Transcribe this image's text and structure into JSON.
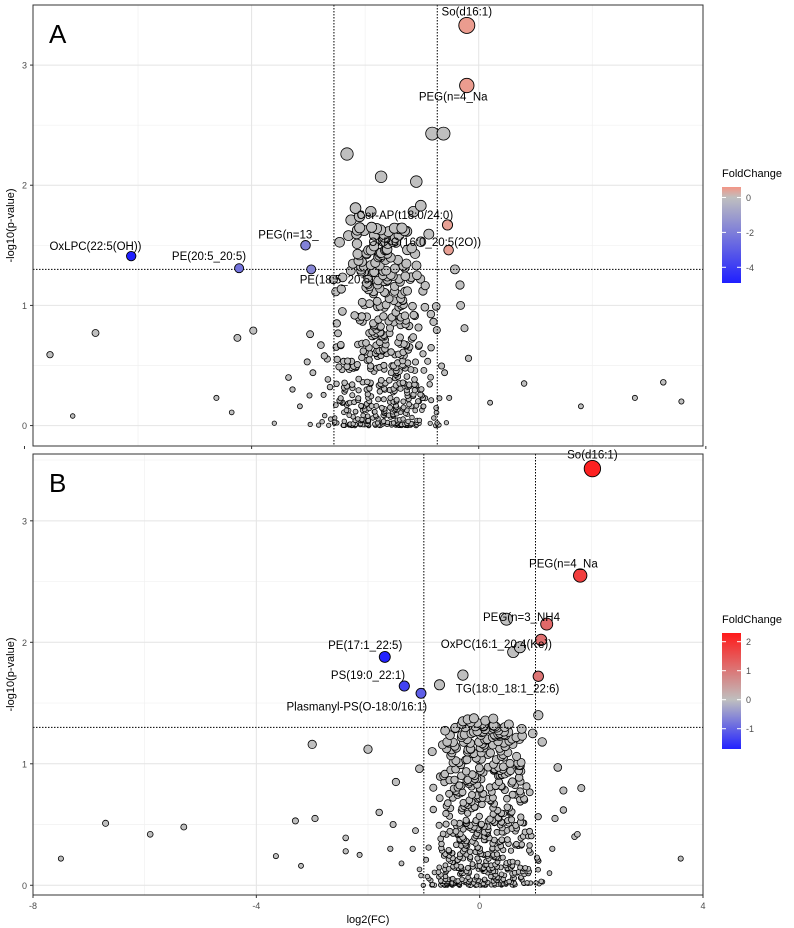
{
  "figure": {
    "shared_xlabel": "log2(FC)",
    "shared_xticks": [
      -8,
      -4,
      0,
      4
    ]
  },
  "chart_data": [
    {
      "type": "scatter",
      "panel_label": "A",
      "ylabel": "-log10(p-value)",
      "xlim": [
        -7.85,
        3.95
      ],
      "ylim": [
        -0.17,
        3.5
      ],
      "yticks": [
        0,
        1,
        2,
        3
      ],
      "grid": true,
      "thresholds": {
        "vlines": [
          -2.55,
          -0.73
        ],
        "hline": 1.3
      },
      "legend": {
        "title": "FoldChange",
        "placement": "right",
        "ticks": [
          0,
          -2,
          -4
        ],
        "range": [
          -4.9,
          0.6
        ],
        "colors": {
          "low": "#1f1fff",
          "mid": "#bfbfbf",
          "high": "#f49585"
        }
      },
      "highlighted": [
        {
          "label": "So(d16:1)",
          "x": -0.21,
          "y": 3.33,
          "fc": 0.5
        },
        {
          "label": "PEG(n=4_Na",
          "x": -0.21,
          "y": 2.83,
          "fc": 0.5
        },
        {
          "label": "Cer-AP(t18:0/24:0)",
          "x": -0.55,
          "y": 1.67,
          "fc": 0.45
        },
        {
          "label": "OxPC(16:0_20:5(2O))",
          "x": -0.53,
          "y": 1.46,
          "fc": 0.45
        },
        {
          "label": "PEG(n=13_",
          "x": -3.05,
          "y": 1.5,
          "fc": -1.9
        },
        {
          "label": "OxLPC(22:5(OH))",
          "x": -6.12,
          "y": 1.41,
          "fc": -4.9
        },
        {
          "label": "PE(20:5_20:5)",
          "x": -4.22,
          "y": 1.31,
          "fc": -2.3
        },
        {
          "label": "PE(18:5_20:5)",
          "x": -2.95,
          "y": 1.3,
          "fc": -1.7
        }
      ],
      "background_points": [
        [
          -2.32,
          2.26
        ],
        [
          -0.82,
          2.43
        ],
        [
          -0.62,
          2.43
        ],
        [
          -1.72,
          2.07
        ],
        [
          -1.1,
          2.03
        ],
        [
          -2.17,
          1.81
        ],
        [
          -2.1,
          1.74
        ],
        [
          -1.9,
          1.78
        ],
        [
          -2.25,
          1.71
        ],
        [
          -1.02,
          1.83
        ],
        [
          -1.15,
          1.78
        ],
        [
          -7.55,
          0.59
        ],
        [
          -6.75,
          0.77
        ],
        [
          -7.15,
          0.08
        ],
        [
          -4.35,
          0.11
        ],
        [
          -4.62,
          0.23
        ],
        [
          -4.25,
          0.73
        ],
        [
          -3.97,
          0.79
        ],
        [
          -3.6,
          0.02
        ],
        [
          -3.35,
          0.4
        ],
        [
          -3.28,
          0.3
        ],
        [
          -3.15,
          0.16
        ],
        [
          -3.02,
          0.53
        ],
        [
          -2.97,
          0.76
        ],
        [
          -2.92,
          0.44
        ],
        [
          -2.98,
          0.25
        ],
        [
          -2.78,
          0.67
        ],
        [
          -2.72,
          0.58
        ],
        [
          -2.62,
          0.32
        ],
        [
          -2.5,
          0.85
        ],
        [
          -2.4,
          0.95
        ],
        [
          -0.18,
          0.56
        ],
        [
          -0.25,
          0.81
        ],
        [
          -0.32,
          1.0
        ],
        [
          -0.52,
          0.23
        ],
        [
          0.2,
          0.19
        ],
        [
          0.8,
          0.35
        ],
        [
          1.8,
          0.16
        ],
        [
          2.75,
          0.23
        ],
        [
          3.25,
          0.36
        ],
        [
          3.57,
          0.2
        ],
        [
          -0.33,
          1.17
        ],
        [
          -0.42,
          1.3
        ]
      ],
      "cloud": {
        "x_range": [
          -3.0,
          -0.4
        ],
        "y_range": [
          0.0,
          1.65
        ],
        "n": 520,
        "seed": 11
      }
    },
    {
      "type": "scatter",
      "panel_label": "B",
      "ylabel": "-log10(p-value)",
      "xlim": [
        -8.0,
        4.0
      ],
      "ylim": [
        -0.08,
        3.55
      ],
      "yticks": [
        0,
        1,
        2,
        3
      ],
      "grid": true,
      "thresholds": {
        "vlines": [
          -1.0,
          1.0
        ],
        "hline": 1.3
      },
      "legend": {
        "title": "FoldChange",
        "placement": "right",
        "ticks": [
          2,
          1,
          0,
          -1
        ],
        "range": [
          -1.7,
          2.3
        ],
        "colors": {
          "low": "#2222ff",
          "mid": "#bfbfbf",
          "high": "#ff1a1a"
        }
      },
      "highlighted": [
        {
          "label": "So(d16:1)",
          "x": 2.02,
          "y": 3.43,
          "fc": 2.2
        },
        {
          "label": "PEG(n=4_Na",
          "x": 1.8,
          "y": 2.55,
          "fc": 1.8
        },
        {
          "label": "PEG(n=3_NH4",
          "x": 1.2,
          "y": 2.15,
          "fc": 1.2
        },
        {
          "label": "OxPC(16:1_20:4(Ke))",
          "x": 1.1,
          "y": 2.02,
          "fc": 1.1
        },
        {
          "label": "TG(18:0_18:1_22:6)",
          "x": 1.05,
          "y": 1.72,
          "fc": 1.05
        },
        {
          "label": "PE(17:1_22:5)",
          "x": -1.7,
          "y": 1.88,
          "fc": -1.7
        },
        {
          "label": "PS(19:0_22:1)",
          "x": -1.35,
          "y": 1.64,
          "fc": -1.35
        },
        {
          "label": "Plasmanyl-PS(O-18:0/16:1)",
          "x": -1.05,
          "y": 1.58,
          "fc": -1.05
        }
      ],
      "background_points": [
        [
          0.48,
          2.19
        ],
        [
          -0.3,
          1.73
        ],
        [
          -0.72,
          1.65
        ],
        [
          0.72,
          1.96
        ],
        [
          0.6,
          1.92
        ],
        [
          -7.5,
          0.22
        ],
        [
          -6.7,
          0.51
        ],
        [
          -5.9,
          0.42
        ],
        [
          -5.3,
          0.48
        ],
        [
          -3.65,
          0.24
        ],
        [
          -3.3,
          0.53
        ],
        [
          -3.2,
          0.16
        ],
        [
          -2.95,
          0.55
        ],
        [
          -3.0,
          1.16
        ],
        [
          -2.4,
          0.28
        ],
        [
          -2.4,
          0.39
        ],
        [
          -2.15,
          0.25
        ],
        [
          -2.0,
          1.12
        ],
        [
          -1.8,
          0.6
        ],
        [
          -1.6,
          0.3
        ],
        [
          -1.5,
          0.85
        ],
        [
          -1.55,
          0.5
        ],
        [
          -1.4,
          0.18
        ],
        [
          -1.2,
          0.3
        ],
        [
          -1.15,
          0.45
        ],
        [
          -1.05,
          0.08
        ],
        [
          -1.08,
          0.96
        ],
        [
          -0.85,
          1.1
        ],
        [
          1.25,
          0.1
        ],
        [
          1.3,
          0.3
        ],
        [
          1.35,
          0.55
        ],
        [
          1.4,
          0.97
        ],
        [
          1.5,
          0.78
        ],
        [
          1.5,
          0.62
        ],
        [
          1.7,
          0.4
        ],
        [
          1.75,
          0.42
        ],
        [
          1.82,
          0.8
        ],
        [
          3.6,
          0.22
        ],
        [
          1.12,
          1.18
        ],
        [
          1.05,
          1.4
        ],
        [
          -0.3,
          1.35
        ],
        [
          -0.15,
          1.25
        ],
        [
          0.95,
          1.25
        ]
      ],
      "cloud": {
        "x_range": [
          -1.2,
          1.3
        ],
        "y_range": [
          0.0,
          1.4
        ],
        "n": 620,
        "seed": 29
      }
    }
  ]
}
